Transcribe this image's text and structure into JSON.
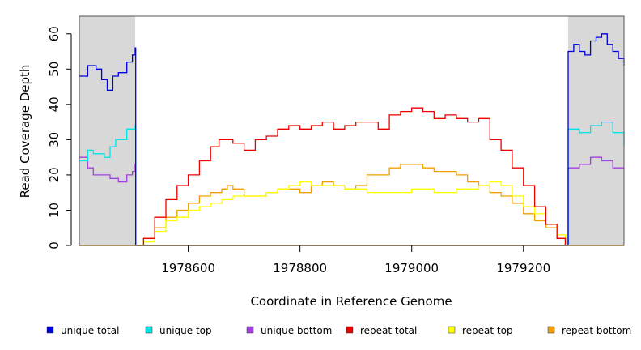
{
  "chart_data": {
    "type": "line",
    "xlabel": "Coordinate in Reference Genome",
    "ylabel": "Read Coverage Depth",
    "xlim": [
      1978405,
      1979380
    ],
    "ylim": [
      0,
      65
    ],
    "x_ticks": [
      1978600,
      1978800,
      1979000,
      1979200
    ],
    "x_tick_labels": [
      "1978600",
      "1978800",
      "1979000",
      "1979200"
    ],
    "y_ticks": [
      0,
      10,
      20,
      30,
      40,
      50,
      60
    ],
    "y_tick_labels": [
      "0",
      "10",
      "20",
      "30",
      "40",
      "50",
      "60"
    ],
    "shaded_regions": [
      [
        1978405,
        1978505
      ],
      [
        1979280,
        1979380
      ]
    ],
    "grid": false,
    "legend_position": "bottom",
    "series": [
      {
        "name": "unique total",
        "color": "#0000dd",
        "x": [
          1978405,
          1978420,
          1978435,
          1978445,
          1978455,
          1978465,
          1978475,
          1978490,
          1978500,
          1978505,
          1978506,
          1979279,
          1979280,
          1979290,
          1979300,
          1979310,
          1979320,
          1979330,
          1979340,
          1979350,
          1979360,
          1979370,
          1979380
        ],
        "y": [
          48,
          51,
          50,
          47,
          44,
          48,
          49,
          52,
          54,
          56,
          0,
          0,
          55,
          57,
          55,
          54,
          58,
          59,
          60,
          57,
          55,
          53,
          51
        ]
      },
      {
        "name": "unique top",
        "color": "#00e5e5",
        "x": [
          1978405,
          1978420,
          1978430,
          1978440,
          1978450,
          1978460,
          1978470,
          1978480,
          1978490,
          1978505,
          1978506,
          1979279,
          1979280,
          1979300,
          1979320,
          1979340,
          1979360,
          1979380
        ],
        "y": [
          24,
          27,
          26,
          26,
          25,
          28,
          30,
          30,
          33,
          34,
          0,
          0,
          33,
          32,
          34,
          35,
          32,
          28
        ]
      },
      {
        "name": "unique bottom",
        "color": "#a040e0",
        "x": [
          1978405,
          1978420,
          1978430,
          1978440,
          1978460,
          1978475,
          1978490,
          1978500,
          1978505,
          1978506,
          1979279,
          1979280,
          1979290,
          1979300,
          1979320,
          1979340,
          1979360,
          1979380
        ],
        "y": [
          25,
          22,
          20,
          20,
          19,
          18,
          20,
          21,
          23,
          0,
          0,
          22,
          22,
          23,
          25,
          24,
          22,
          22
        ]
      },
      {
        "name": "repeat total",
        "color": "#ee0000",
        "x": [
          1978505,
          1978520,
          1978540,
          1978560,
          1978580,
          1978600,
          1978620,
          1978640,
          1978655,
          1978665,
          1978680,
          1978700,
          1978720,
          1978740,
          1978760,
          1978780,
          1978800,
          1978820,
          1978840,
          1978860,
          1978880,
          1978900,
          1978920,
          1978940,
          1978960,
          1978980,
          1979000,
          1979020,
          1979040,
          1979060,
          1979080,
          1979100,
          1979120,
          1979140,
          1979160,
          1979180,
          1979200,
          1979220,
          1979240,
          1979260,
          1979275
        ],
        "y": [
          0,
          2,
          8,
          13,
          17,
          20,
          24,
          28,
          30,
          30,
          29,
          27,
          30,
          31,
          33,
          34,
          33,
          34,
          35,
          33,
          34,
          35,
          35,
          33,
          37,
          38,
          39,
          38,
          36,
          37,
          36,
          35,
          36,
          30,
          27,
          22,
          17,
          11,
          6,
          2,
          0
        ]
      },
      {
        "name": "repeat top",
        "color": "#ffff00",
        "x": [
          1978505,
          1978520,
          1978540,
          1978560,
          1978580,
          1978600,
          1978620,
          1978640,
          1978660,
          1978680,
          1978700,
          1978720,
          1978740,
          1978760,
          1978780,
          1978800,
          1978820,
          1978840,
          1978860,
          1978880,
          1978900,
          1978920,
          1978940,
          1978960,
          1978980,
          1979000,
          1979020,
          1979040,
          1979060,
          1979080,
          1979100,
          1979120,
          1979140,
          1979160,
          1979180,
          1979200,
          1979220,
          1979240,
          1979260,
          1979275
        ],
        "y": [
          0,
          1,
          4,
          7,
          8,
          10,
          11,
          12,
          13,
          14,
          14,
          14,
          15,
          16,
          17,
          18,
          17,
          17,
          17,
          16,
          16,
          15,
          15,
          15,
          15,
          16,
          16,
          15,
          15,
          16,
          16,
          17,
          18,
          17,
          14,
          11,
          9,
          6,
          3,
          0
        ]
      },
      {
        "name": "repeat bottom",
        "color": "#f0a000",
        "x": [
          1978505,
          1978520,
          1978540,
          1978560,
          1978580,
          1978600,
          1978620,
          1978640,
          1978660,
          1978670,
          1978680,
          1978700,
          1978720,
          1978740,
          1978760,
          1978780,
          1978800,
          1978820,
          1978840,
          1978860,
          1978880,
          1978900,
          1978920,
          1978940,
          1978960,
          1978980,
          1979000,
          1979020,
          1979040,
          1979060,
          1979080,
          1979100,
          1979120,
          1979140,
          1979160,
          1979180,
          1979200,
          1979220,
          1979240,
          1979260,
          1979275
        ],
        "y": [
          0,
          2,
          5,
          8,
          10,
          12,
          14,
          15,
          16,
          17,
          16,
          14,
          14,
          15,
          16,
          16,
          15,
          17,
          18,
          17,
          16,
          17,
          20,
          20,
          22,
          23,
          23,
          22,
          21,
          21,
          20,
          18,
          17,
          15,
          14,
          12,
          9,
          7,
          5,
          2,
          0
        ]
      }
    ]
  }
}
